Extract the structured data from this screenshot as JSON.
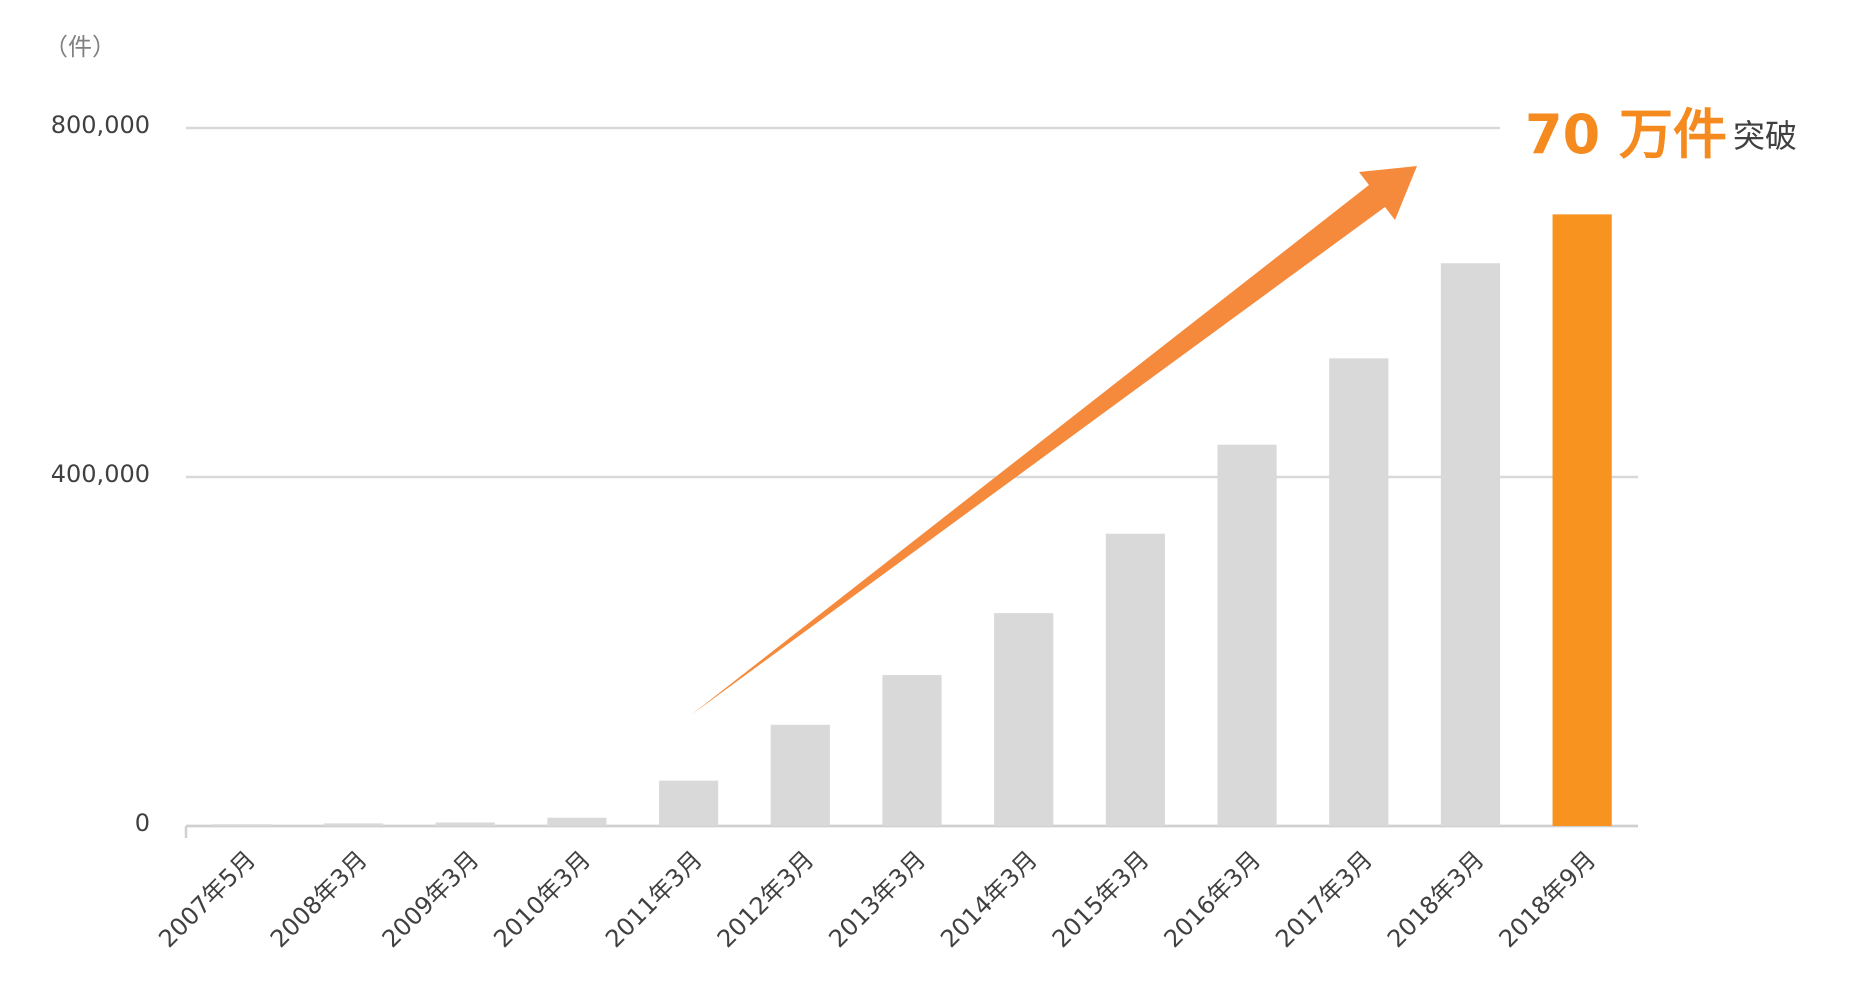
{
  "chart_data": {
    "type": "bar",
    "y_unit_label": "（件）",
    "categories": [
      "2007年5月",
      "2008年3月",
      "2009年3月",
      "2010年3月",
      "2011年3月",
      "2012年3月",
      "2013年3月",
      "2014年3月",
      "2015年3月",
      "2016年3月",
      "2017年3月",
      "2018年3月",
      "2018年9月"
    ],
    "values": [
      2000,
      3000,
      4000,
      9500,
      52000,
      116000,
      173000,
      244000,
      335000,
      437000,
      536000,
      645000,
      701000
    ],
    "colors": [
      "#d9d9d9",
      "#d9d9d9",
      "#d9d9d9",
      "#d9d9d9",
      "#d9d9d9",
      "#d9d9d9",
      "#d9d9d9",
      "#d9d9d9",
      "#d9d9d9",
      "#d9d9d9",
      "#d9d9d9",
      "#d9d9d9",
      "#f7931e"
    ],
    "ylim": [
      0,
      800000
    ],
    "yticks": [
      {
        "value": 0,
        "label": "0"
      },
      {
        "value": 400000,
        "label": "400,000"
      },
      {
        "value": 800000,
        "label": "800,000"
      }
    ],
    "grid": true,
    "annotation": {
      "main": "70 万件",
      "suffix": "突破"
    }
  }
}
